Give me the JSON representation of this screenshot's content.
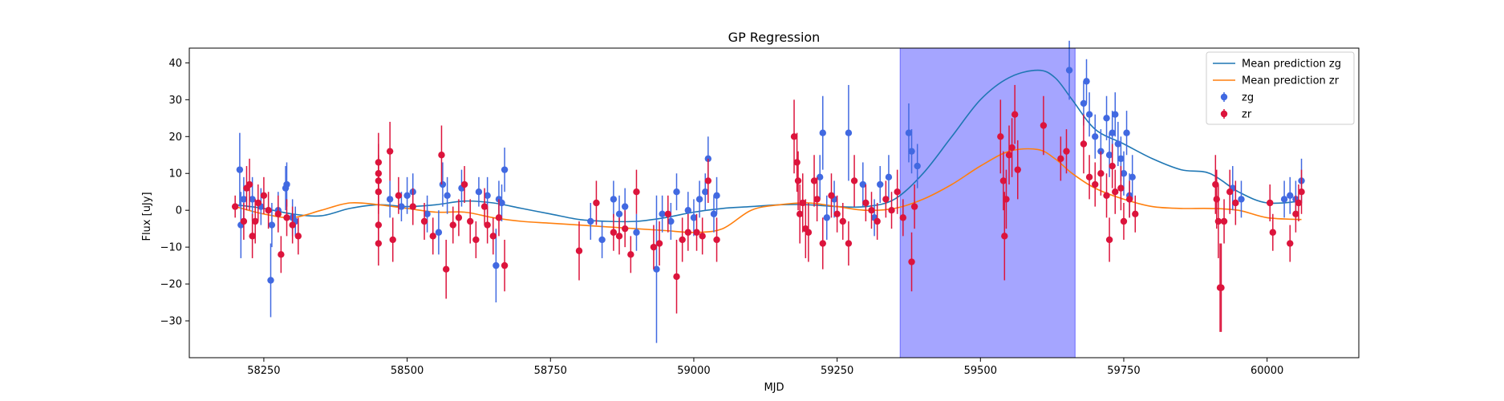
{
  "chart_data": {
    "type": "scatter",
    "title": "GP Regression",
    "xlabel": "MJD",
    "ylabel": "Flux [uJy]",
    "xlim": [
      58120,
      60160
    ],
    "ylim": [
      -40,
      44
    ],
    "x_ticks": [
      58250,
      58500,
      58750,
      59000,
      59250,
      59500,
      59750,
      60000
    ],
    "y_ticks": [
      -30,
      -20,
      -10,
      0,
      10,
      20,
      30,
      40
    ],
    "legend_position": "top-right",
    "highlight_span": {
      "x0": 59360,
      "x1": 59665,
      "color": "#a5a5ff"
    },
    "series": [
      {
        "name": "Mean prediction zg",
        "kind": "line",
        "color": "#1f77b4",
        "x": [
          58200,
          58250,
          58300,
          58350,
          58400,
          58450,
          58500,
          58550,
          58600,
          58650,
          58700,
          58750,
          58800,
          58850,
          58900,
          58950,
          59000,
          59050,
          59100,
          59150,
          59200,
          59250,
          59300,
          59350,
          59400,
          59450,
          59500,
          59550,
          59600,
          59630,
          59660,
          59700,
          59750,
          59800,
          59850,
          59900,
          59950,
          60000,
          60060
        ],
        "values": [
          1.5,
          0.5,
          -1.0,
          -1.5,
          0.5,
          1.5,
          1.0,
          1.5,
          2.5,
          2.0,
          0.5,
          -1.0,
          -2.5,
          -3.0,
          -3.0,
          -2.0,
          -0.5,
          0.5,
          1.0,
          1.5,
          1.5,
          1.0,
          1.0,
          3.0,
          10.0,
          20.0,
          30.0,
          36.0,
          38.0,
          36.0,
          30.0,
          22.0,
          18.0,
          14.0,
          11.0,
          10.0,
          5.0,
          2.0,
          2.5
        ]
      },
      {
        "name": "Mean prediction zr",
        "kind": "line",
        "color": "#ff7f0e",
        "x": [
          58200,
          58250,
          58300,
          58350,
          58400,
          58450,
          58500,
          58550,
          58600,
          58650,
          58700,
          58750,
          58800,
          58850,
          58900,
          58950,
          59000,
          59050,
          59100,
          59150,
          59200,
          59250,
          59300,
          59350,
          59400,
          59450,
          59500,
          59550,
          59600,
          59630,
          59660,
          59700,
          59750,
          59800,
          59850,
          59900,
          59950,
          60000,
          60060
        ],
        "values": [
          1.0,
          -1.0,
          -2.0,
          0.0,
          2.0,
          1.5,
          0.5,
          -0.5,
          -0.5,
          -2.0,
          -3.0,
          -3.5,
          -4.0,
          -4.5,
          -5.0,
          -5.5,
          -6.0,
          -5.0,
          0.0,
          1.5,
          2.0,
          1.0,
          0.0,
          0.5,
          3.0,
          7.0,
          12.0,
          16.0,
          16.5,
          14.0,
          10.0,
          6.0,
          3.0,
          1.0,
          0.5,
          0.5,
          0.0,
          -2.0,
          -2.5
        ]
      },
      {
        "name": "zg",
        "kind": "errorbar",
        "color": "#4169e1",
        "points": [
          [
            58208,
            11,
            10
          ],
          [
            58210,
            -4,
            9
          ],
          [
            58215,
            3,
            6
          ],
          [
            58230,
            3,
            6
          ],
          [
            58245,
            1,
            5
          ],
          [
            58262,
            -19,
            10
          ],
          [
            58264,
            -4,
            6
          ],
          [
            58275,
            0,
            5
          ],
          [
            58288,
            6,
            6
          ],
          [
            58290,
            7,
            6
          ],
          [
            58300,
            -2,
            5
          ],
          [
            58305,
            -3,
            4
          ],
          [
            58470,
            3,
            5
          ],
          [
            58490,
            1,
            4
          ],
          [
            58500,
            4,
            5
          ],
          [
            58510,
            5,
            5
          ],
          [
            58535,
            -1,
            5
          ],
          [
            58555,
            -6,
            6
          ],
          [
            58562,
            7,
            6
          ],
          [
            58570,
            4,
            5
          ],
          [
            58595,
            6,
            5
          ],
          [
            58625,
            5,
            4
          ],
          [
            58640,
            4,
            5
          ],
          [
            58655,
            -15,
            10
          ],
          [
            58660,
            3,
            5
          ],
          [
            58665,
            2,
            5
          ],
          [
            58670,
            11,
            6
          ],
          [
            58820,
            -3,
            5
          ],
          [
            58840,
            -8,
            5
          ],
          [
            58860,
            3,
            5
          ],
          [
            58870,
            -1,
            5
          ],
          [
            58880,
            1,
            5
          ],
          [
            58900,
            -6,
            5
          ],
          [
            58935,
            -16,
            20
          ],
          [
            58945,
            -1,
            5
          ],
          [
            58960,
            -3,
            5
          ],
          [
            58970,
            5,
            5
          ],
          [
            58990,
            0,
            5
          ],
          [
            59000,
            -2,
            5
          ],
          [
            59010,
            3,
            5
          ],
          [
            59020,
            5,
            5
          ],
          [
            59025,
            14,
            6
          ],
          [
            59035,
            -1,
            5
          ],
          [
            59040,
            4,
            5
          ],
          [
            59220,
            9,
            6
          ],
          [
            59225,
            21,
            10
          ],
          [
            59232,
            -2,
            6
          ],
          [
            59245,
            3,
            5
          ],
          [
            59270,
            21,
            13
          ],
          [
            59295,
            7,
            6
          ],
          [
            59315,
            -2,
            5
          ],
          [
            59325,
            7,
            5
          ],
          [
            59340,
            9,
            6
          ],
          [
            59375,
            21,
            8
          ],
          [
            59380,
            16,
            6
          ],
          [
            59390,
            12,
            6
          ],
          [
            59655,
            38,
            8
          ],
          [
            59680,
            29,
            6
          ],
          [
            59685,
            35,
            6
          ],
          [
            59690,
            26,
            6
          ],
          [
            59700,
            20,
            6
          ],
          [
            59710,
            16,
            6
          ],
          [
            59720,
            25,
            6
          ],
          [
            59725,
            15,
            6
          ],
          [
            59730,
            21,
            6
          ],
          [
            59735,
            26,
            6
          ],
          [
            59740,
            18,
            6
          ],
          [
            59745,
            14,
            6
          ],
          [
            59750,
            10,
            6
          ],
          [
            59755,
            21,
            6
          ],
          [
            59760,
            4,
            6
          ],
          [
            59765,
            9,
            6
          ],
          [
            59940,
            6,
            6
          ],
          [
            59955,
            3,
            5
          ],
          [
            60030,
            3,
            5
          ],
          [
            60040,
            4,
            5
          ],
          [
            60050,
            3,
            5
          ],
          [
            60060,
            8,
            6
          ]
        ]
      },
      {
        "name": "zr",
        "kind": "errorbar",
        "color": "#dc143c",
        "points": [
          [
            58200,
            1,
            3
          ],
          [
            58215,
            -3,
            5
          ],
          [
            58220,
            6,
            6
          ],
          [
            58225,
            7,
            7
          ],
          [
            58230,
            -7,
            6
          ],
          [
            58235,
            -3,
            6
          ],
          [
            58240,
            2,
            5
          ],
          [
            58250,
            4,
            5
          ],
          [
            58258,
            0,
            5
          ],
          [
            58275,
            -1,
            5
          ],
          [
            58280,
            -12,
            5
          ],
          [
            58290,
            -2,
            5
          ],
          [
            58300,
            -4,
            5
          ],
          [
            58310,
            -7,
            5
          ],
          [
            58450,
            13,
            8
          ],
          [
            58450,
            10,
            8
          ],
          [
            58450,
            8,
            7
          ],
          [
            58450,
            5,
            6
          ],
          [
            58450,
            -4,
            6
          ],
          [
            58450,
            -9,
            6
          ],
          [
            58470,
            16,
            8
          ],
          [
            58475,
            -8,
            6
          ],
          [
            58485,
            4,
            5
          ],
          [
            58510,
            1,
            5
          ],
          [
            58530,
            -3,
            5
          ],
          [
            58545,
            -7,
            5
          ],
          [
            58560,
            15,
            8
          ],
          [
            58568,
            -16,
            8
          ],
          [
            58580,
            -4,
            5
          ],
          [
            58590,
            -2,
            5
          ],
          [
            58600,
            7,
            5
          ],
          [
            58610,
            -3,
            6
          ],
          [
            58620,
            -8,
            5
          ],
          [
            58635,
            1,
            5
          ],
          [
            58640,
            -4,
            5
          ],
          [
            58650,
            -7,
            5
          ],
          [
            58660,
            -2,
            5
          ],
          [
            58670,
            -15,
            7
          ],
          [
            58800,
            -11,
            8
          ],
          [
            58830,
            2,
            6
          ],
          [
            58860,
            -6,
            5
          ],
          [
            58870,
            -7,
            5
          ],
          [
            58880,
            -5,
            5
          ],
          [
            58890,
            -12,
            5
          ],
          [
            58900,
            5,
            6
          ],
          [
            58930,
            -10,
            6
          ],
          [
            58940,
            -9,
            6
          ],
          [
            58955,
            -1,
            5
          ],
          [
            58970,
            -18,
            10
          ],
          [
            58980,
            -8,
            6
          ],
          [
            58990,
            -6,
            5
          ],
          [
            59005,
            -6,
            5
          ],
          [
            59015,
            -7,
            5
          ],
          [
            59025,
            8,
            6
          ],
          [
            59040,
            -8,
            6
          ],
          [
            59175,
            20,
            10
          ],
          [
            59180,
            13,
            8
          ],
          [
            59182,
            8,
            8
          ],
          [
            59185,
            -1,
            8
          ],
          [
            59190,
            2,
            8
          ],
          [
            59195,
            -5,
            8
          ],
          [
            59200,
            -6,
            8
          ],
          [
            59210,
            8,
            7
          ],
          [
            59215,
            3,
            6
          ],
          [
            59225,
            -9,
            7
          ],
          [
            59240,
            4,
            6
          ],
          [
            59250,
            -1,
            5
          ],
          [
            59260,
            -3,
            5
          ],
          [
            59270,
            -9,
            6
          ],
          [
            59280,
            8,
            7
          ],
          [
            59300,
            2,
            5
          ],
          [
            59310,
            0,
            5
          ],
          [
            59320,
            -3,
            5
          ],
          [
            59335,
            3,
            5
          ],
          [
            59345,
            0,
            5
          ],
          [
            59355,
            5,
            6
          ],
          [
            59365,
            -2,
            5
          ],
          [
            59380,
            -14,
            8
          ],
          [
            59385,
            1,
            6
          ],
          [
            59535,
            20,
            10
          ],
          [
            59540,
            8,
            8
          ],
          [
            59542,
            -7,
            12
          ],
          [
            59545,
            3,
            8
          ],
          [
            59550,
            15,
            8
          ],
          [
            59555,
            17,
            8
          ],
          [
            59560,
            26,
            8
          ],
          [
            59565,
            11,
            8
          ],
          [
            59610,
            23,
            8
          ],
          [
            59640,
            14,
            6
          ],
          [
            59650,
            16,
            6
          ],
          [
            59680,
            18,
            8
          ],
          [
            59690,
            9,
            6
          ],
          [
            59700,
            7,
            6
          ],
          [
            59710,
            10,
            6
          ],
          [
            59720,
            4,
            6
          ],
          [
            59725,
            -8,
            6
          ],
          [
            59730,
            12,
            6
          ],
          [
            59735,
            5,
            6
          ],
          [
            59745,
            6,
            6
          ],
          [
            59750,
            -3,
            5
          ],
          [
            59760,
            3,
            5
          ],
          [
            59770,
            -1,
            5
          ],
          [
            59910,
            7,
            8
          ],
          [
            59912,
            3,
            8
          ],
          [
            59915,
            -3,
            10
          ],
          [
            59918,
            -21,
            12
          ],
          [
            59920,
            -21,
            12
          ],
          [
            59925,
            -3,
            6
          ],
          [
            59935,
            5,
            6
          ],
          [
            59945,
            2,
            6
          ],
          [
            60005,
            2,
            5
          ],
          [
            60010,
            -6,
            5
          ],
          [
            60040,
            -9,
            5
          ],
          [
            60050,
            -1,
            5
          ],
          [
            60055,
            2,
            5
          ],
          [
            60060,
            5,
            6
          ]
        ]
      }
    ]
  }
}
